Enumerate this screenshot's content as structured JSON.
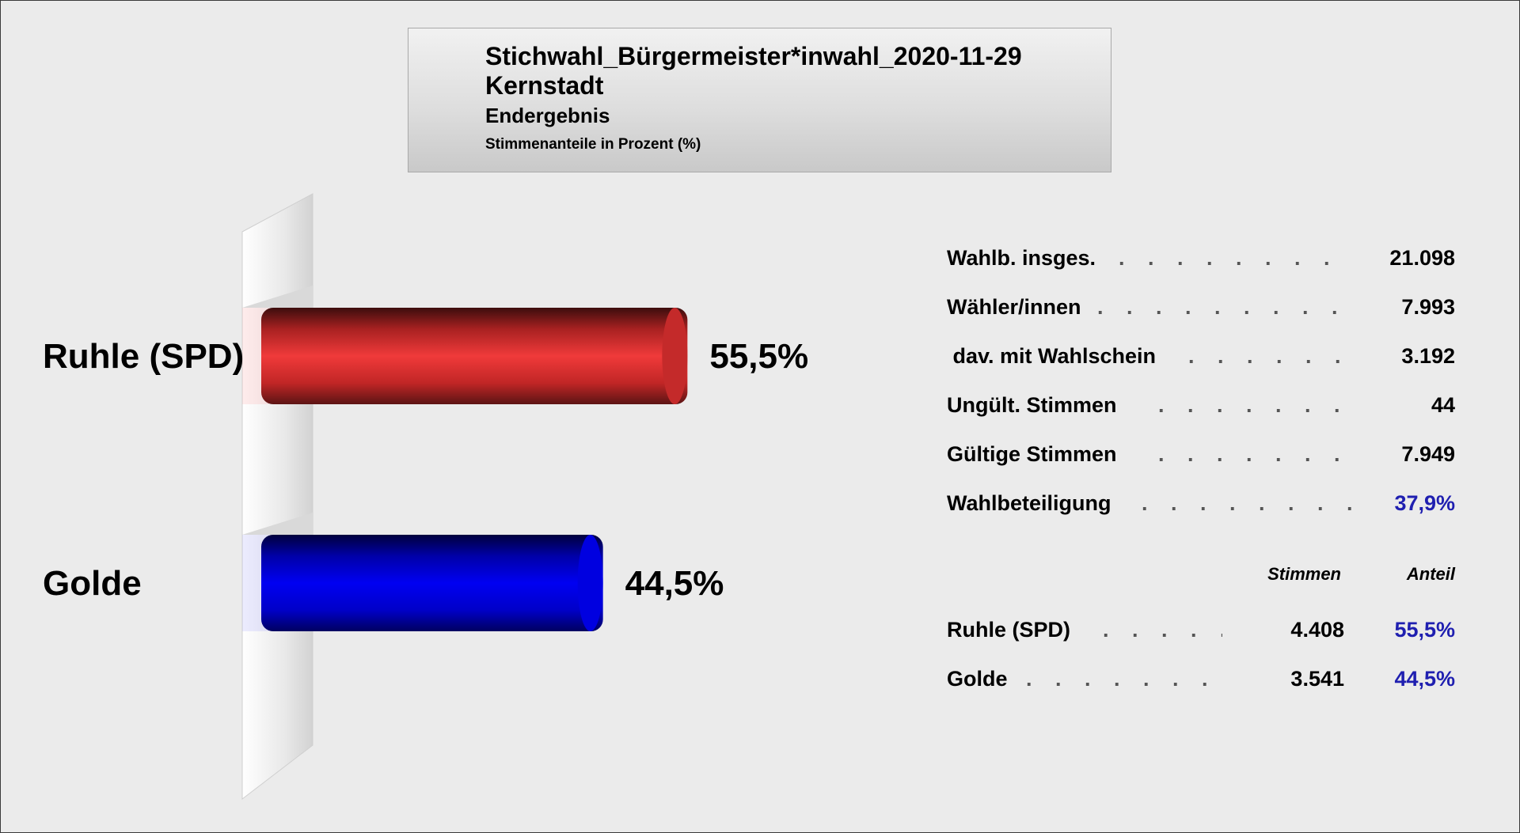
{
  "title": {
    "line1": "Stichwahl_Bürgermeister*inwahl_2020-11-29",
    "line2": "Kernstadt",
    "line3": "Endergebnis",
    "subtitle": "Stimmenanteile in Prozent (%)"
  },
  "chart_data": {
    "type": "bar",
    "orientation": "horizontal",
    "categories": [
      "Ruhle (SPD)",
      "Golde"
    ],
    "values": [
      55.5,
      44.5
    ],
    "value_labels": [
      "55,5%",
      "44,5%"
    ],
    "colors": [
      "#e03434",
      "#0000ee"
    ],
    "unit": "%"
  },
  "stats": [
    {
      "label": "Wahlb. insges.",
      "value": "21.098"
    },
    {
      "label": "Wähler/innen",
      "value": "7.993"
    },
    {
      "label": " dav. mit Wahlschein",
      "value": "3.192"
    },
    {
      "label": "Ungült. Stimmen",
      "value": "44"
    },
    {
      "label": "Gültige Stimmen",
      "value": "7.949"
    },
    {
      "label": "Wahlbeteiligung",
      "value": "37,9%"
    }
  ],
  "results_table": {
    "headers": {
      "votes": "Stimmen",
      "share": "Anteil"
    },
    "rows": [
      {
        "name": "Ruhle (SPD)",
        "votes": "4.408",
        "share": "55,5%"
      },
      {
        "name": "Golde",
        "votes": "3.541",
        "share": "44,5%"
      }
    ]
  },
  "colors": {
    "background": "#ebebeb",
    "accent_blue": "#1f1fb0"
  }
}
